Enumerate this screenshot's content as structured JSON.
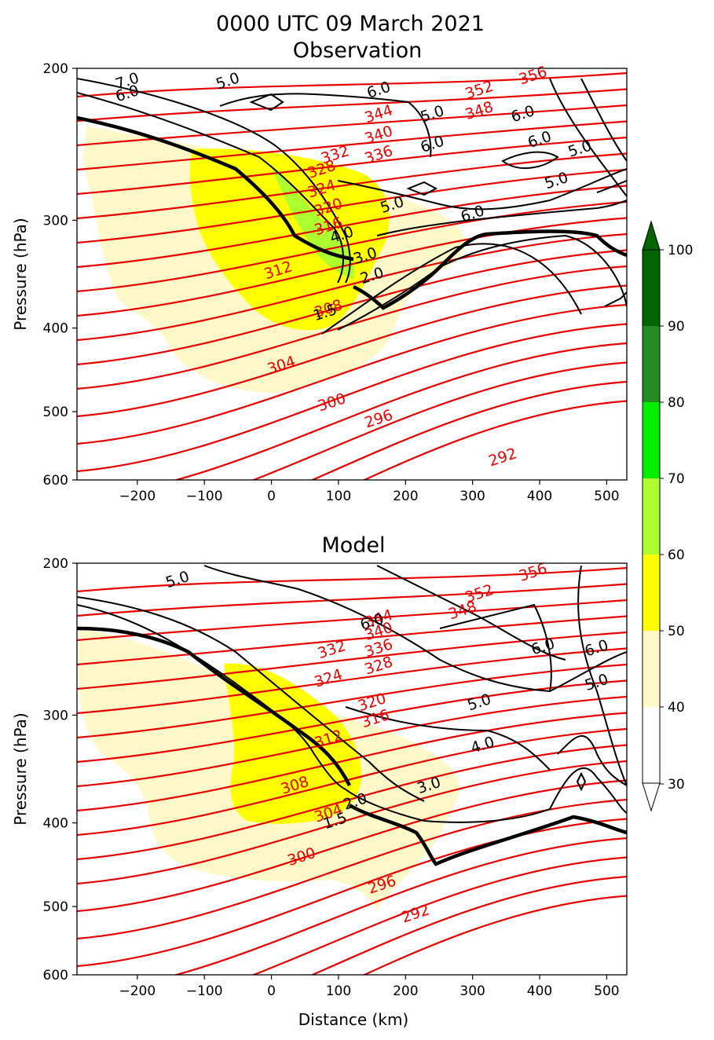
{
  "figure": {
    "title_line1": "0000 UTC 09 March 2021",
    "title_line2": "Observation"
  },
  "chart_data": [
    {
      "type": "contour",
      "title": "Observation",
      "xlabel": "",
      "ylabel": "Pressure (hPa)",
      "xlim": [
        -290,
        530
      ],
      "ylim": [
        600,
        200
      ],
      "y_scale": "log",
      "x_ticks": [
        -200,
        -100,
        0,
        100,
        200,
        300,
        400,
        500
      ],
      "y_ticks": [
        200,
        300,
        400,
        500,
        600
      ],
      "theta_labels": [
        {
          "text": "356",
          "x": 390,
          "p": 204
        },
        {
          "text": "352",
          "x": 310,
          "p": 212
        },
        {
          "text": "348",
          "x": 310,
          "p": 224
        },
        {
          "text": "344",
          "x": 160,
          "p": 226
        },
        {
          "text": "340",
          "x": 160,
          "p": 239
        },
        {
          "text": "336",
          "x": 160,
          "p": 252
        },
        {
          "text": "332",
          "x": 95,
          "p": 252
        },
        {
          "text": "328",
          "x": 75,
          "p": 262
        },
        {
          "text": "324",
          "x": 75,
          "p": 276
        },
        {
          "text": "320",
          "x": 85,
          "p": 290
        },
        {
          "text": "316",
          "x": 85,
          "p": 305
        },
        {
          "text": "312",
          "x": 10,
          "p": 343
        },
        {
          "text": "308",
          "x": 85,
          "p": 380
        },
        {
          "text": "304",
          "x": 15,
          "p": 442
        },
        {
          "text": "300",
          "x": 90,
          "p": 488
        },
        {
          "text": "296",
          "x": 160,
          "p": 510
        },
        {
          "text": "292",
          "x": 345,
          "p": 565
        }
      ],
      "pv_labels": [
        {
          "text": "7.0",
          "x": -215,
          "p": 207
        },
        {
          "text": "6.0",
          "x": -215,
          "p": 214
        },
        {
          "text": "5.0",
          "x": -65,
          "p": 207
        },
        {
          "text": "6.0",
          "x": 160,
          "p": 212
        },
        {
          "text": "5.0",
          "x": 240,
          "p": 226
        },
        {
          "text": "6.0",
          "x": 240,
          "p": 245
        },
        {
          "text": "6.0",
          "x": 375,
          "p": 226
        },
        {
          "text": "6.0",
          "x": 400,
          "p": 242
        },
        {
          "text": "5.0",
          "x": 460,
          "p": 248
        },
        {
          "text": "5.0",
          "x": 425,
          "p": 270
        },
        {
          "text": "5.0",
          "x": 180,
          "p": 288
        },
        {
          "text": "6.0",
          "x": 300,
          "p": 295
        },
        {
          "text": "4.0",
          "x": 105,
          "p": 312
        },
        {
          "text": "3.0",
          "x": 140,
          "p": 330
        },
        {
          "text": "2.0",
          "x": 150,
          "p": 348
        },
        {
          "text": "1.5",
          "x": 80,
          "p": 384
        }
      ],
      "shading_levels": [
        30,
        40,
        50,
        60,
        70,
        80,
        90,
        100
      ]
    },
    {
      "type": "contour",
      "title": "Model",
      "xlabel": "Distance (km)",
      "ylabel": "Pressure (hPa)",
      "xlim": [
        -290,
        530
      ],
      "ylim": [
        600,
        200
      ],
      "y_scale": "log",
      "x_ticks": [
        -200,
        -100,
        0,
        100,
        200,
        300,
        400,
        500
      ],
      "y_ticks": [
        200,
        300,
        400,
        500,
        600
      ],
      "theta_labels": [
        {
          "text": "356",
          "x": 390,
          "p": 205
        },
        {
          "text": "352",
          "x": 310,
          "p": 217
        },
        {
          "text": "348",
          "x": 285,
          "p": 227
        },
        {
          "text": "344",
          "x": 160,
          "p": 232
        },
        {
          "text": "340",
          "x": 160,
          "p": 240
        },
        {
          "text": "336",
          "x": 160,
          "p": 251
        },
        {
          "text": "332",
          "x": 90,
          "p": 252
        },
        {
          "text": "328",
          "x": 160,
          "p": 263
        },
        {
          "text": "324",
          "x": 85,
          "p": 272
        },
        {
          "text": "320",
          "x": 150,
          "p": 290
        },
        {
          "text": "316",
          "x": 155,
          "p": 303
        },
        {
          "text": "312",
          "x": 85,
          "p": 320
        },
        {
          "text": "308",
          "x": 35,
          "p": 362
        },
        {
          "text": "304",
          "x": 85,
          "p": 390
        },
        {
          "text": "300",
          "x": 45,
          "p": 438
        },
        {
          "text": "296",
          "x": 165,
          "p": 472
        },
        {
          "text": "292",
          "x": 215,
          "p": 510
        }
      ],
      "pv_labels": [
        {
          "text": "5.0",
          "x": -140,
          "p": 209
        },
        {
          "text": "6.0",
          "x": 150,
          "p": 234
        },
        {
          "text": "6.0",
          "x": 405,
          "p": 250
        },
        {
          "text": "6.0",
          "x": 485,
          "p": 251
        },
        {
          "text": "5.0",
          "x": 485,
          "p": 275
        },
        {
          "text": "5.0",
          "x": 310,
          "p": 290
        },
        {
          "text": "4.0",
          "x": 315,
          "p": 325
        },
        {
          "text": "3.0",
          "x": 235,
          "p": 362
        },
        {
          "text": "2.0",
          "x": 125,
          "p": 378
        },
        {
          "text": "1.5",
          "x": 95,
          "p": 398
        }
      ],
      "shading_levels": [
        30,
        40,
        50,
        60,
        70,
        80,
        90,
        100
      ]
    }
  ],
  "colorbar": {
    "levels": [
      30,
      40,
      50,
      60,
      70,
      80,
      90,
      100
    ],
    "tick_labels": [
      "30",
      "40",
      "50",
      "60",
      "70",
      "80",
      "90",
      "100"
    ],
    "colors": [
      "#ffffff",
      "#fff8c8",
      "#ffff00",
      "#adff2f",
      "#00ee00",
      "#228b22",
      "#006400"
    ]
  }
}
